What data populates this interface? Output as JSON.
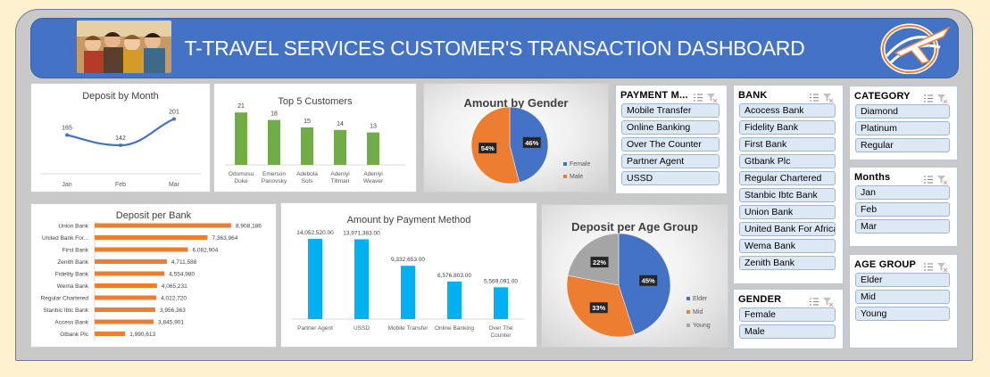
{
  "header": {
    "title": "T-TRAVEL SERVICES CUSTOMER'S TRANSACTION DASHBOARD"
  },
  "charts": {
    "deposit_by_month": {
      "title": "Deposit by Month"
    },
    "top5": {
      "title": "Top 5 Customers"
    },
    "gender": {
      "title": "Amount by Gender"
    },
    "deposit_bank": {
      "title": "Deposit per Bank"
    },
    "payment": {
      "title": "Amount by Payment  Method"
    },
    "age": {
      "title": "Deposit per Age Group"
    }
  },
  "chart_data": [
    {
      "type": "line",
      "title": "Deposit by Month",
      "categories": [
        "Jan",
        "Feb",
        "Mar"
      ],
      "values": [
        165,
        142,
        201
      ],
      "color": "#4472c4"
    },
    {
      "type": "bar",
      "title": "Top 5 Customers",
      "categories": [
        "Odumosu Duke",
        "Emerson Panovsky",
        "Adebola Sols",
        "Adeniyi Tillman",
        "Adeniyi Weaver"
      ],
      "values": [
        21,
        18,
        15,
        14,
        13
      ],
      "color": "#70ad47"
    },
    {
      "type": "pie",
      "title": "Amount by Gender",
      "slices": [
        {
          "label": "Female",
          "value": 46,
          "display": "46%",
          "color": "#4472c4"
        },
        {
          "label": "Male",
          "value": 54,
          "display": "54%",
          "color": "#ed7d31"
        }
      ]
    },
    {
      "type": "bar",
      "orientation": "horizontal",
      "title": "Deposit per Bank",
      "categories": [
        "Union Bank",
        "United Bank For...",
        "First Bank",
        "Zenith Bank",
        "Fidelity Bank",
        "Wema Bank",
        "Regular Chartered",
        "Stanbic Ibtc Bank",
        "Access Bank",
        "Gtbank Plc"
      ],
      "values": [
        8908186,
        7363964,
        6082904,
        4711588,
        4554980,
        4065231,
        4022720,
        3956363,
        3845901,
        1990613
      ],
      "labels": [
        "8,908,186",
        "7,363,964",
        "6,082,904",
        "4,711,588",
        "4,554,980",
        "4,065,231",
        "4,022,720",
        "3,956,363",
        "3,845,901",
        "1,990,613"
      ],
      "color": "#ed7d31"
    },
    {
      "type": "bar",
      "title": "Amount by Payment  Method",
      "categories": [
        "Partner Agent",
        "USSD",
        "Mobile Transfer",
        "Online Banking",
        "Over The Counter"
      ],
      "values": [
        14052520,
        13971383,
        9332653,
        6576803,
        5569091
      ],
      "labels": [
        "14,052,520.00",
        "13,971,383.00",
        "9,332,653.00",
        "6,576,803.00",
        "5,569,091.00"
      ],
      "color": "#00b0f0"
    },
    {
      "type": "pie",
      "title": "Deposit per Age Group",
      "slices": [
        {
          "label": "Elder",
          "value": 45,
          "display": "45%",
          "color": "#4472c4"
        },
        {
          "label": "Mid",
          "value": 33,
          "display": "33%",
          "color": "#ed7d31"
        },
        {
          "label": "Young",
          "value": 22,
          "display": "22%",
          "color": "#a5a5a5"
        }
      ]
    }
  ],
  "slicers": {
    "payment": {
      "title": "PAYMENT M...",
      "items": [
        "Mobile Transfer",
        "Online Banking",
        "Over The Counter",
        "Partner Agent",
        "USSD"
      ]
    },
    "bank": {
      "title": "BANK",
      "items": [
        "Acocess Bank",
        "Fidelity Bank",
        "First Bank",
        "Gtbank Plc",
        "Regular Chartered",
        "Stanbic Ibtc Bank",
        "Union Bank",
        "United Bank For Africa",
        "Wema Bank",
        "Zenith Bank"
      ]
    },
    "category": {
      "title": "CATEGORY",
      "items": [
        "Diamond",
        "Platinum",
        "Regular"
      ]
    },
    "months": {
      "title": "Months",
      "items": [
        "Jan",
        "Feb",
        "Mar"
      ]
    },
    "gender": {
      "title": "GENDER",
      "items": [
        "Female",
        "Male"
      ]
    },
    "age": {
      "title": "AGE GROUP",
      "items": [
        "Elder",
        "Mid",
        "Young"
      ]
    }
  },
  "icons": {
    "multi_select": "multi-select-icon",
    "clear_filter": "clear-filter-icon",
    "logo": "airplane-globe-logo"
  }
}
